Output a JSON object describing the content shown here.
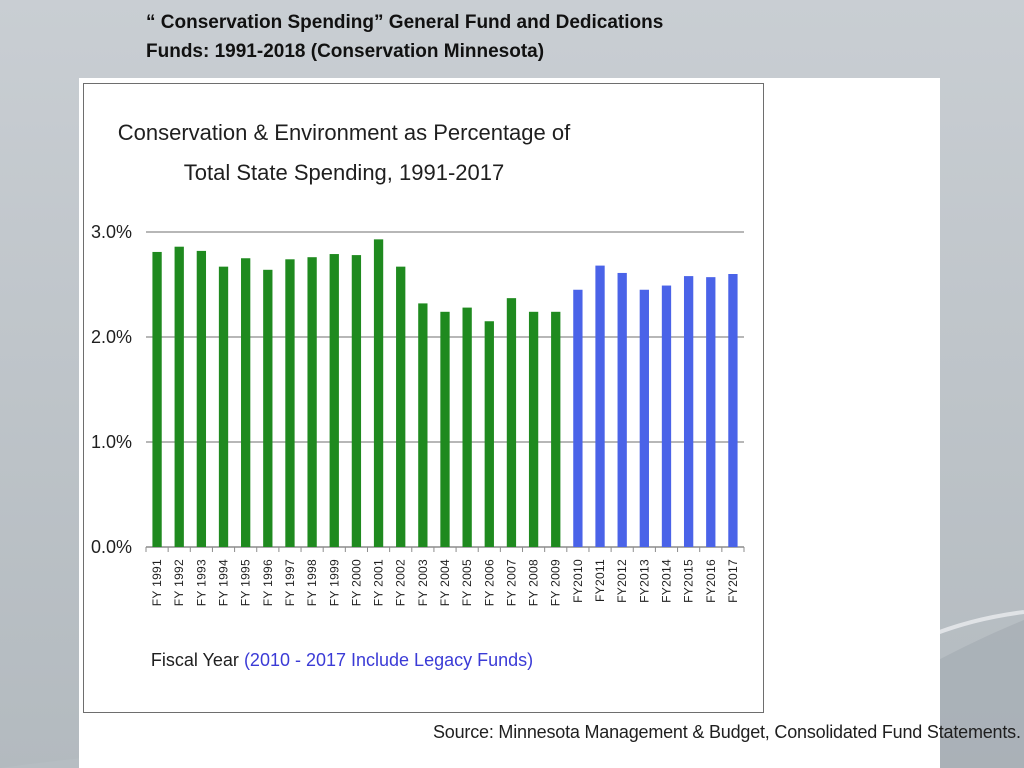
{
  "slide": {
    "title_line1": "“ Conservation Spending” General Fund and Dedications",
    "title_line2": "Funds:  1991-2018 (Conservation Minnesota)",
    "source": "Source: Minnesota Management & Budget, Consolidated Fund Statements."
  },
  "colors": {
    "pre_legacy": "#1f8a1f",
    "legacy": "#4a63e8",
    "gridline": "#8c8c8c",
    "note": "#3b3bd6"
  },
  "chart_data": {
    "type": "bar",
    "title_line1": "Conservation & Environment as Percentage of",
    "title_line2": "Total State Spending, 1991-2017",
    "xlabel": "Fiscal Year",
    "xlabel_note": "(2010 - 2017 Include Legacy Funds)",
    "ylabel": "",
    "ylim": [
      0,
      3.0
    ],
    "y_ticks": [
      0,
      1,
      2,
      3
    ],
    "y_tick_labels": [
      "0.0%",
      "1.0%",
      "2.0%",
      "3.0%"
    ],
    "grid": true,
    "categories": [
      "FY 1991",
      "FY 1992",
      "FY 1993",
      "FY 1994",
      "FY 1995",
      "FY 1996",
      "FY 1997",
      "FY 1998",
      "FY 1999",
      "FY 2000",
      "FY 2001",
      "FY 2002",
      "FY 2003",
      "FY 2004",
      "FY 2005",
      "FY 2006",
      "FY 2007",
      "FY 2008",
      "FY 2009",
      "FY2010",
      "FY2011",
      "FY2012",
      "FY2013",
      "FY2014",
      "FY2015",
      "FY2016",
      "FY2017"
    ],
    "values": [
      2.81,
      2.86,
      2.82,
      2.67,
      2.75,
      2.64,
      2.74,
      2.76,
      2.79,
      2.78,
      2.93,
      2.67,
      2.32,
      2.24,
      2.28,
      2.15,
      2.37,
      2.24,
      2.24,
      2.45,
      2.68,
      2.61,
      2.45,
      2.49,
      2.58,
      2.57,
      2.6
    ],
    "series_by_index": [
      "pre_legacy",
      "pre_legacy",
      "pre_legacy",
      "pre_legacy",
      "pre_legacy",
      "pre_legacy",
      "pre_legacy",
      "pre_legacy",
      "pre_legacy",
      "pre_legacy",
      "pre_legacy",
      "pre_legacy",
      "pre_legacy",
      "pre_legacy",
      "pre_legacy",
      "pre_legacy",
      "pre_legacy",
      "pre_legacy",
      "pre_legacy",
      "legacy",
      "legacy",
      "legacy",
      "legacy",
      "legacy",
      "legacy",
      "legacy",
      "legacy"
    ]
  }
}
